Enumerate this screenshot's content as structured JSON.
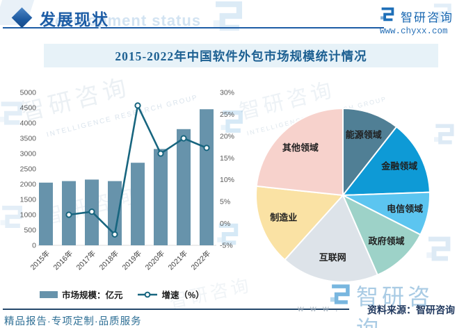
{
  "header": {
    "section_title": "发展现状",
    "section_title_en": "Development status",
    "brand_name": "智研咨询",
    "website": "www.chyxx.com"
  },
  "title_banner": "2015-2022年中国软件外包市场规模统计情况",
  "chart_data": [
    {
      "type": "bar",
      "title": "2015-2022年中国软件外包市场规模统计情况",
      "categories": [
        "2015年",
        "2016年",
        "2017年",
        "2018年",
        "2019年",
        "2020年",
        "2021年",
        "2022年"
      ],
      "series": [
        {
          "name": "市场规模：亿元",
          "type": "bar",
          "axis": "left",
          "color": "#6793ab",
          "values": [
            2050,
            2100,
            2150,
            2100,
            2700,
            3150,
            3800,
            4450
          ]
        },
        {
          "name": "增速（%）",
          "type": "line",
          "axis": "right",
          "color": "#17657f",
          "values": [
            null,
            2,
            2.7,
            -2.5,
            27,
            16,
            19.5,
            17.3
          ]
        }
      ],
      "left_axis": {
        "min": 0,
        "max": 5000,
        "step": 500
      },
      "right_axis": {
        "min": -5,
        "max": 30,
        "step": 5,
        "suffix": "%"
      },
      "grid": false,
      "legend_position": "bottom"
    },
    {
      "type": "pie",
      "segments": [
        {
          "label": "能源领域",
          "start": 0,
          "end": 38,
          "pct": 10.6,
          "color": "#507f95"
        },
        {
          "label": "金融领域",
          "start": 38,
          "end": 88,
          "pct": 13.9,
          "color": "#0e9ad6"
        },
        {
          "label": "电信领域",
          "start": 88,
          "end": 117,
          "pct": 8.1,
          "color": "#5cc5f0"
        },
        {
          "label": "政府领域",
          "start": 117,
          "end": 156.5,
          "pct": 11.0,
          "color": "#9dd2c8"
        },
        {
          "label": "互联网",
          "start": 156.5,
          "end": 222,
          "pct": 18.2,
          "color": "#dde3e9"
        },
        {
          "label": "制造业",
          "start": 222,
          "end": 276,
          "pct": 15.0,
          "color": "#fae2a4"
        },
        {
          "label": "其他领域",
          "start": 276,
          "end": 360,
          "pct": 23.3,
          "color": "#f7d2cc"
        }
      ]
    }
  ],
  "legend": {
    "bar_label": "市场规模：亿元",
    "line_label": "增速（%）"
  },
  "footer": {
    "source": "资料来源：智研咨询",
    "services": "精品报告·专项定制·品质服务",
    "watermark_brand": "智研咨询",
    "watermark_www": "w w w ."
  },
  "watermarks": {
    "brand_cn": "智研咨询",
    "brand_en": "INTELLIGENCE RESEARCH GROUP"
  },
  "colors": {
    "accent_blue": "#1c5ca5",
    "banner_bg": "#e7f2f8",
    "bar": "#6793ab",
    "line": "#17657f",
    "footer_navy": "#21395f"
  }
}
